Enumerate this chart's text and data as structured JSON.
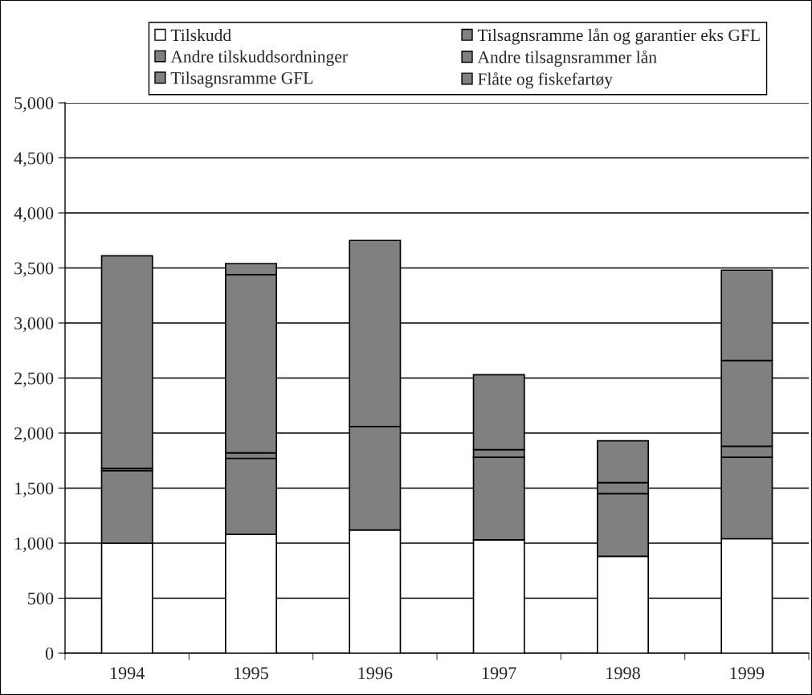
{
  "chart_data": {
    "type": "bar",
    "stacked": true,
    "categories": [
      "1994",
      "1995",
      "1996",
      "1997",
      "1998",
      "1999"
    ],
    "series": [
      {
        "name": "Tilskudd",
        "color": "#ffffff",
        "values": [
          1000,
          1080,
          1120,
          1030,
          880,
          1040
        ]
      },
      {
        "name": "Tilsagnsramme lån og garantier eks GFL",
        "color": "#808080",
        "values": [
          660,
          690,
          940,
          750,
          570,
          740
        ]
      },
      {
        "name": "Andre tilskuddsordninger",
        "color": "#808080",
        "values": [
          20,
          null,
          null,
          null,
          null,
          null
        ]
      },
      {
        "name": "Andre tilsagnsrammer lån",
        "color": "#808080",
        "values": [
          null,
          50,
          null,
          70,
          100,
          100
        ]
      },
      {
        "name": "Tilsagnsramme GFL",
        "color": "#808080",
        "values": [
          1930,
          1620,
          1690,
          680,
          380,
          780
        ]
      },
      {
        "name": "Flåte og fiskefartøy",
        "color": "#808080",
        "values": [
          null,
          100,
          null,
          null,
          null,
          820
        ]
      }
    ],
    "ylim": [
      0,
      5000
    ],
    "yticks": [
      0,
      500,
      {
        "value": 1000,
        "label": "1,000"
      },
      {
        "value": 1500,
        "label": "1,500"
      },
      {
        "value": 2000,
        "label": "2,000"
      },
      {
        "value": 2500,
        "label": "2,500"
      },
      {
        "value": 3000,
        "label": "3,000"
      },
      {
        "value": 3500,
        "label": "3,500"
      },
      {
        "value": 4000,
        "label": "4,000"
      },
      {
        "value": 4500,
        "label": "4,500"
      },
      {
        "value": 5000,
        "label": "5,000"
      }
    ],
    "grid": "y",
    "legend": "top"
  }
}
